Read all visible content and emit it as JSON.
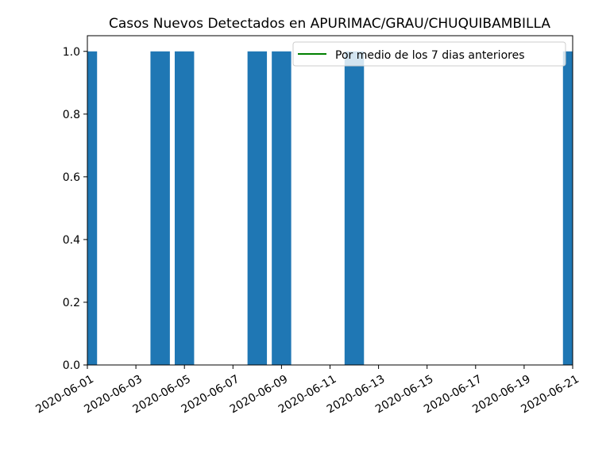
{
  "chart_data": {
    "type": "bar",
    "title": "Casos Nuevos Detectados en APURIMAC/GRAU/CHUQUIBAMBILLA",
    "xlabel": "",
    "ylabel": "",
    "xlim": [
      "2020-06-01",
      "2020-06-21"
    ],
    "ylim": [
      0,
      1.05
    ],
    "x_ticks": [
      "2020-06-01",
      "2020-06-03",
      "2020-06-05",
      "2020-06-07",
      "2020-06-09",
      "2020-06-11",
      "2020-06-13",
      "2020-06-15",
      "2020-06-17",
      "2020-06-19",
      "2020-06-21"
    ],
    "y_ticks": [
      "0.0",
      "0.2",
      "0.4",
      "0.6",
      "0.8",
      "1.0"
    ],
    "y_tick_values": [
      0,
      0.2,
      0.4,
      0.6,
      0.8,
      1.0
    ],
    "bars": [
      {
        "date": "2020-06-01",
        "value": 1
      },
      {
        "date": "2020-06-04",
        "value": 1
      },
      {
        "date": "2020-06-05",
        "value": 1
      },
      {
        "date": "2020-06-08",
        "value": 1
      },
      {
        "date": "2020-06-09",
        "value": 1
      },
      {
        "date": "2020-06-12",
        "value": 1
      },
      {
        "date": "2020-06-21",
        "value": 1
      }
    ],
    "series": [
      {
        "name": "Por medio de los 7 dias anteriores",
        "type": "line",
        "color": "#008000",
        "values": []
      }
    ],
    "bar_color": "#1f77b4",
    "legend": {
      "placement": "top-right",
      "entries": [
        "Por medio de los 7 dias anteriores"
      ]
    },
    "grid": false
  }
}
